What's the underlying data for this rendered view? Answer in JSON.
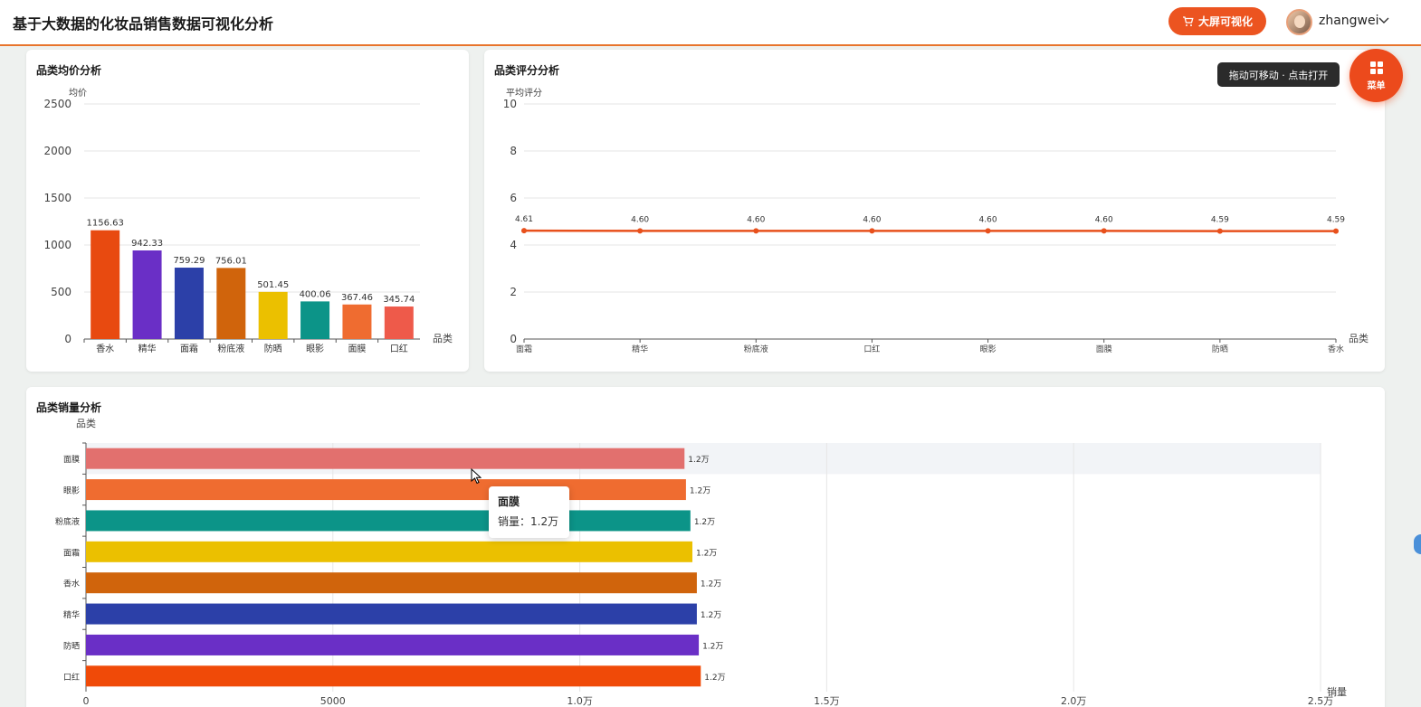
{
  "header": {
    "title": "基于大数据的化妆品销售数据可视化分析",
    "big_screen_label": "大屏可视化",
    "username": "zhangwei"
  },
  "hint": {
    "text": "拖动可移动 · 点击打开"
  },
  "menu_fab": {
    "label": "菜单"
  },
  "colors": {
    "accent": "#ec5420",
    "line": "#e8501c"
  },
  "icons": [
    "cart-icon",
    "chevron-down-icon",
    "grid-icon",
    "cursor-icon"
  ],
  "tooltip": {
    "title": "面膜",
    "value": "销量：1.2万"
  },
  "chart_data": [
    {
      "type": "bar",
      "title": "品类均价分析",
      "ylabel": "均价",
      "xlabel": "品类",
      "ylim": [
        0,
        2500
      ],
      "yticks": [
        "0",
        "500",
        "1000",
        "1500",
        "2000",
        "2500"
      ],
      "categories": [
        "香水",
        "精华",
        "面霜",
        "粉底液",
        "防晒",
        "眼影",
        "面膜",
        "口红"
      ],
      "values": [
        1156.63,
        942.33,
        759.29,
        756.01,
        501.45,
        400.06,
        367.46,
        345.74
      ],
      "labels": [
        "1156.63",
        "942.33",
        "759.29",
        "756.01",
        "501.45",
        "400.06",
        "367.46",
        "345.74"
      ],
      "colors": [
        "#e84a10",
        "#6a2fc6",
        "#2c40a8",
        "#d0640c",
        "#ebc000",
        "#0c9488",
        "#ef6c30",
        "#ee5a4a"
      ]
    },
    {
      "type": "line",
      "title": "品类评分分析",
      "ylabel": "平均评分",
      "xlabel": "品类",
      "ylim": [
        0,
        10
      ],
      "yticks": [
        "0",
        "2",
        "4",
        "6",
        "8",
        "10"
      ],
      "categories": [
        "面霜",
        "精华",
        "粉底液",
        "口红",
        "眼影",
        "面膜",
        "防晒",
        "香水"
      ],
      "values": [
        4.61,
        4.6,
        4.6,
        4.6,
        4.6,
        4.6,
        4.59,
        4.59
      ],
      "labels": [
        "4.61",
        "4.60",
        "4.60",
        "4.60",
        "4.60",
        "4.60",
        "4.59",
        "4.59"
      ]
    },
    {
      "type": "bar",
      "orientation": "horizontal",
      "title": "品类销量分析",
      "ylabel": "品类",
      "xlabel": "销量",
      "xlim": [
        0,
        25000
      ],
      "xticks": [
        "0",
        "5000",
        "1.0万",
        "1.5万",
        "2.0万",
        "2.5万"
      ],
      "categories": [
        "面膜",
        "眼影",
        "粉底液",
        "面霜",
        "香水",
        "精华",
        "防晒",
        "口红"
      ],
      "values": [
        12120,
        12150,
        12240,
        12280,
        12370,
        12370,
        12410,
        12450
      ],
      "labels": [
        "1.2万",
        "1.2万",
        "1.2万",
        "1.2万",
        "1.2万",
        "1.2万",
        "1.2万",
        "1.2万"
      ],
      "colors": [
        "#e2706e",
        "#ef6c30",
        "#0c9488",
        "#ebc000",
        "#d0640c",
        "#2c40a8",
        "#6a2fc6",
        "#f04a08"
      ]
    }
  ]
}
